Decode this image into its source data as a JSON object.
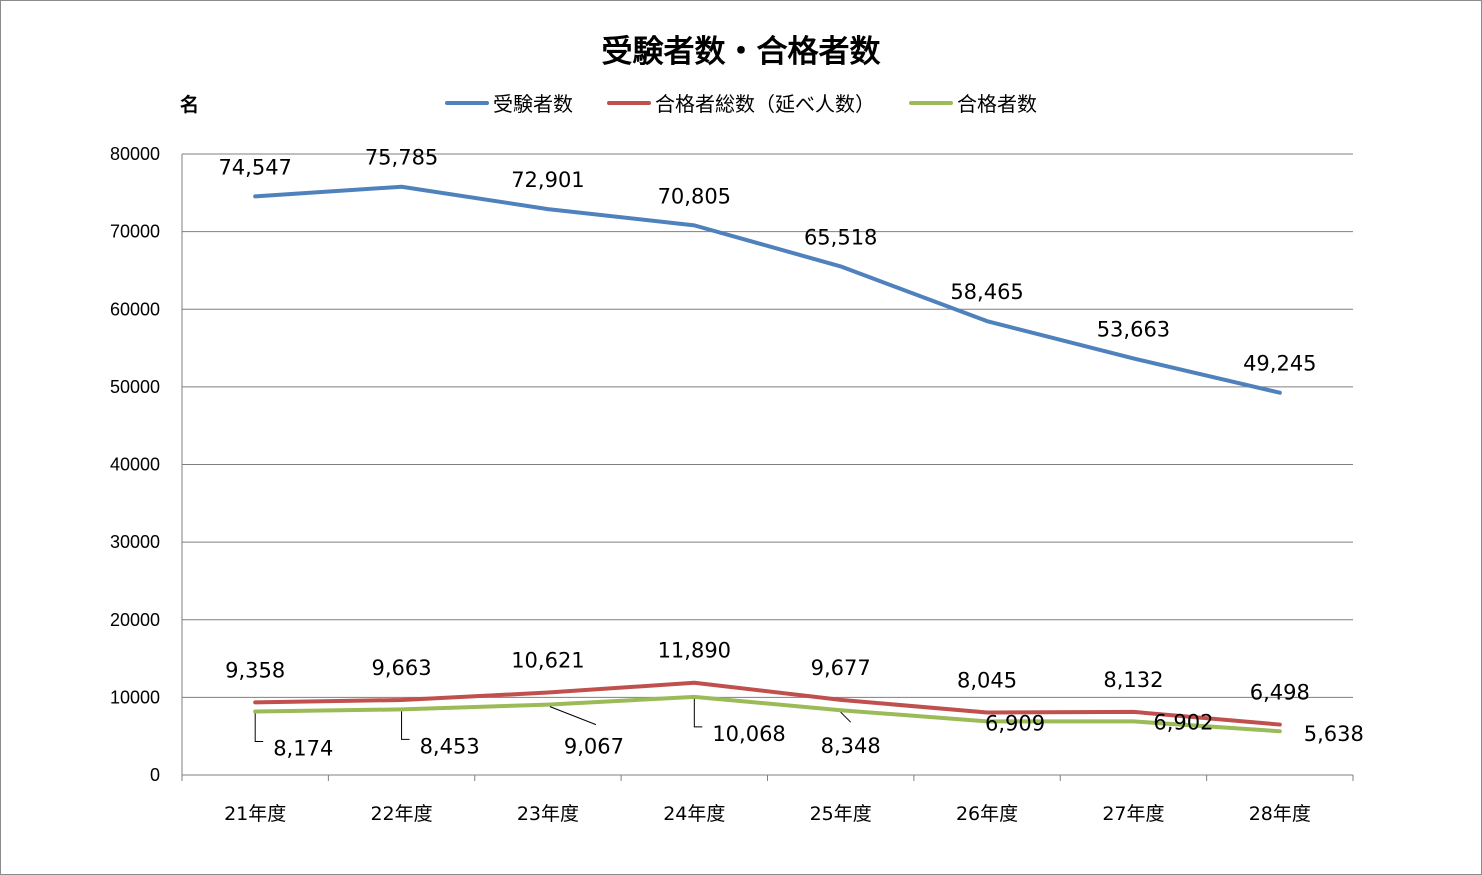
{
  "chart_data": {
    "type": "line",
    "title": "受験者数・合格者数",
    "ylabel": "名",
    "xlabel": "",
    "categories": [
      "21年度",
      "22年度",
      "23年度",
      "24年度",
      "25年度",
      "26年度",
      "27年度",
      "28年度"
    ],
    "ylim": [
      0,
      80000
    ],
    "yticks": [
      "0",
      "10000",
      "20000",
      "30000",
      "40000",
      "50000",
      "60000",
      "70000",
      "80000"
    ],
    "grid": true,
    "legend_position": "top",
    "series": [
      {
        "name": "受験者数",
        "color": "#4f81bd",
        "values": [
          74547,
          75785,
          72901,
          70805,
          65518,
          58465,
          53663,
          49245
        ],
        "labels": [
          "74,547",
          "75,785",
          "72,901",
          "70,805",
          "65,518",
          "58,465",
          "53,663",
          "49,245"
        ]
      },
      {
        "name": "合格者総数（延べ人数）",
        "color": "#c0504d",
        "values": [
          9358,
          9663,
          10621,
          11890,
          9677,
          8045,
          8132,
          6498
        ],
        "labels": [
          "9,358",
          "9,663",
          "10,621",
          "11,890",
          "9,677",
          "8,045",
          "8,132",
          "6,498"
        ]
      },
      {
        "name": "合格者数",
        "color": "#9bbb59",
        "values": [
          8174,
          8453,
          9067,
          10068,
          8348,
          6909,
          6902,
          5638
        ],
        "labels": [
          "8,174",
          "8,453",
          "9,067",
          "10,068",
          "8,348",
          "6,909",
          "6,902",
          "5,638"
        ]
      }
    ]
  }
}
